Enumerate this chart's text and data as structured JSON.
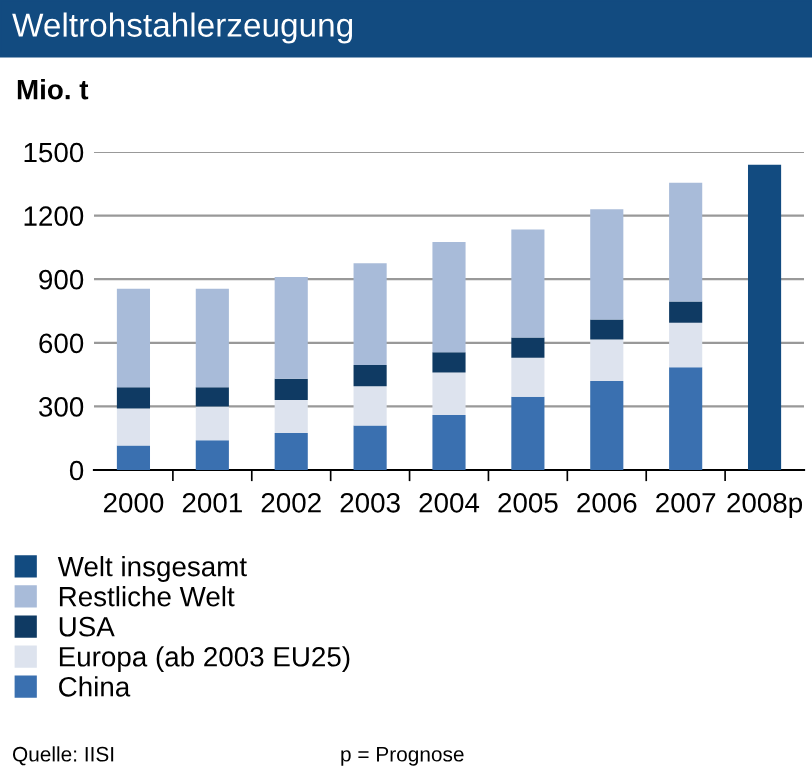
{
  "chart_data": {
    "type": "bar",
    "title": "Weltrohstahlerzeugung",
    "ylabel": "Mio. t",
    "stacked": true,
    "categories": [
      "2000",
      "2001",
      "2002",
      "2003",
      "2004",
      "2005",
      "2006",
      "2007",
      "2008p"
    ],
    "series": [
      {
        "name": "China",
        "color": "#3a70b0",
        "values": [
          115,
          140,
          175,
          210,
          260,
          345,
          420,
          485,
          null
        ]
      },
      {
        "name": "Europa (ab 2003 EU25)",
        "color": "#dde3ee",
        "values": [
          175,
          160,
          155,
          185,
          200,
          185,
          195,
          210,
          null
        ]
      },
      {
        "name": "USA",
        "color": "#0f3a63",
        "values": [
          100,
          90,
          100,
          100,
          95,
          95,
          95,
          100,
          null
        ]
      },
      {
        "name": "Restliche Welt",
        "color": "#a8bbd9",
        "values": [
          465,
          465,
          480,
          480,
          520,
          510,
          520,
          560,
          null
        ]
      },
      {
        "name": "Welt insgesamt",
        "color": "#124b80",
        "values": [
          null,
          null,
          null,
          null,
          null,
          null,
          null,
          null,
          1440
        ]
      }
    ],
    "ylim": [
      0,
      1500
    ],
    "yticks": [
      0,
      300,
      600,
      900,
      1200,
      1500
    ],
    "grid": "y",
    "legend": "bottom",
    "annotations": [
      "Quelle: IISI",
      "p = Prognose"
    ]
  }
}
